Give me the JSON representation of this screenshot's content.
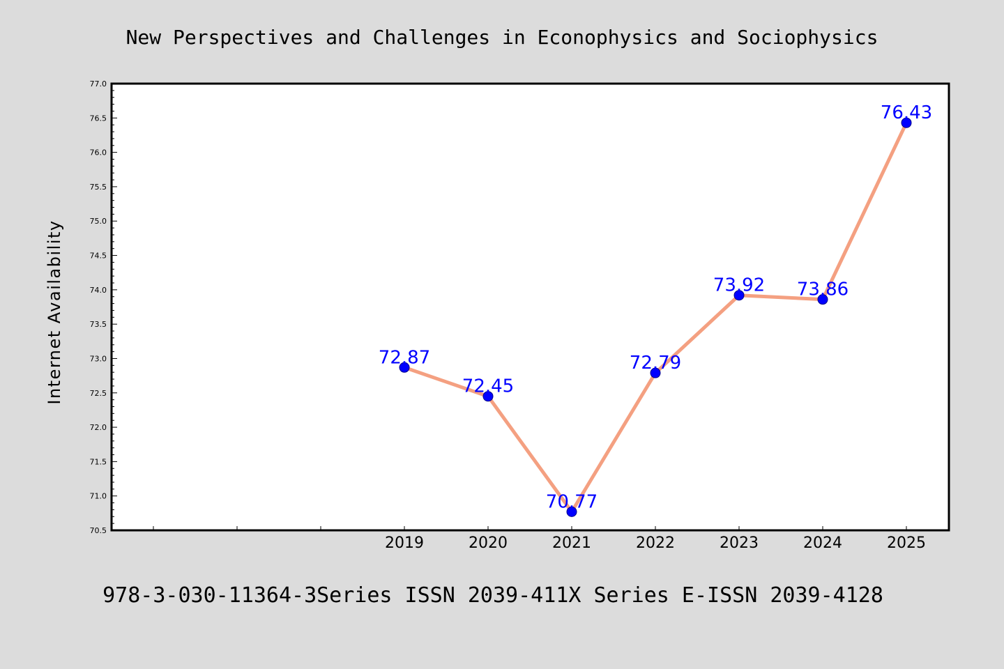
{
  "chart_data": {
    "type": "line",
    "title": "New Perspectives and Challenges in Econophysics and Sociophysics",
    "subtitle": "978-3-030-11364-3Series ISSN 2039-411X Series E-ISSN 2039-4128",
    "xlabel": "",
    "ylabel": "Internet Availability",
    "categories": [
      "",
      "",
      "",
      "2019",
      "2020",
      "2021",
      "2022",
      "2023",
      "2024",
      "2025"
    ],
    "series": [
      {
        "values": [
          null,
          null,
          null,
          72.87,
          72.45,
          70.77,
          72.79,
          73.92,
          73.86,
          76.43
        ],
        "labels": [
          "",
          "",
          "",
          "72.87",
          "72.45",
          "70.77",
          "72.79",
          "73.92",
          "73.86",
          "76.43"
        ]
      }
    ],
    "ylim": [
      70.5,
      77.0
    ],
    "yticks": [
      70.5,
      71.0,
      71.5,
      72.0,
      72.5,
      73.0,
      73.5,
      74.0,
      74.5,
      75.0,
      75.5,
      76.0,
      76.5,
      77.0
    ],
    "ytick_labels": [
      "70.5",
      "71.0",
      "71.5",
      "72.0",
      "72.5",
      "73.0",
      "73.5",
      "74.0",
      "74.5",
      "75.0",
      "75.5",
      "76.0",
      "76.5",
      "77.0"
    ],
    "grid": false,
    "legend": "none",
    "colors": {
      "background": "#dcdcdc",
      "plot_background": "#ffffff",
      "line": "#f4a081",
      "marker": "#0000ff",
      "label": "#0000ff",
      "axis": "#000000"
    }
  }
}
